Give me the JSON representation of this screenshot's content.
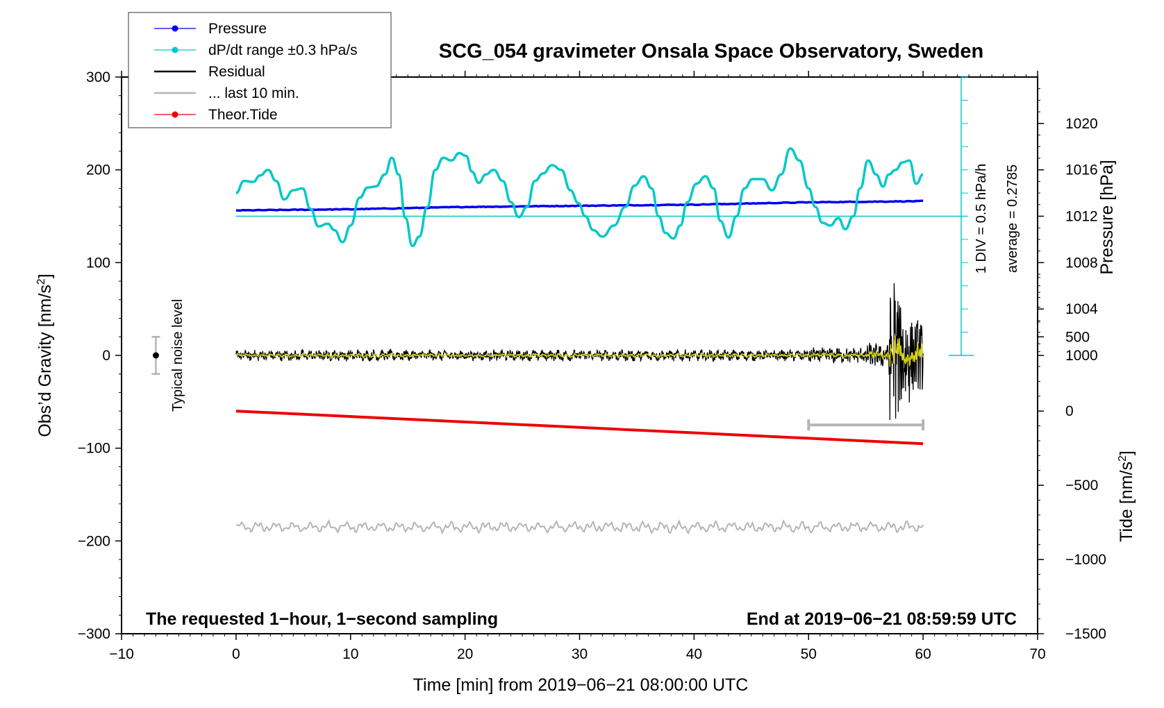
{
  "chart_data": {
    "type": "line",
    "title": "SCG_054 gravimeter Onsala Space Observatory, Sweden",
    "xlabel": "Time [min] from 2019−06−21 08:00:00 UTC",
    "ylabel_left": "Obs’d Gravity [nm/s",
    "ylabel_left_sup": "2",
    "ylabel_left_end": "]",
    "ylabel_right_top": "Pressure [hPa]",
    "ylabel_right_bottom_pre": "Tide [nm/s",
    "ylabel_right_bottom_sup": "2",
    "ylabel_right_bottom_end": "]",
    "xlim": [
      -10,
      70
    ],
    "ylim_left": [
      -300,
      300
    ],
    "pressure_axis_range": [
      1000,
      1024
    ],
    "tide_axis_range": [
      -1500,
      1000
    ],
    "x_ticks": [
      "−10",
      "0",
      "10",
      "20",
      "30",
      "40",
      "50",
      "60",
      "70"
    ],
    "y_left_ticks": [
      "300",
      "200",
      "100",
      "0",
      "−100",
      "−200",
      "−300"
    ],
    "y_pressure_ticks": [
      "1020",
      "1016",
      "1012",
      "1008",
      "1004",
      "1000"
    ],
    "y_tide_ticks": [
      "500",
      "0",
      "−500",
      "−1000",
      "−1500"
    ],
    "legend": [
      {
        "name": "Pressure",
        "color": "#0000ee",
        "marker": true
      },
      {
        "name": "dP/dt range ±0.3 hPa/s",
        "color": "#00c8c8",
        "marker": true
      },
      {
        "name": "Residual",
        "color": "#000000",
        "marker": false
      },
      {
        "name": "... last 10 min.",
        "color": "#b4b4b4",
        "marker": false
      },
      {
        "name": "Theor.Tide",
        "color": "#ee0000",
        "marker": true
      }
    ],
    "annotation_left_bottom": "The requested 1−hour, 1−second sampling",
    "annotation_right_bottom": "End at 2019−06−21 08:59:59 UTC",
    "noise_label": "Typical noise level",
    "noise_bar": {
      "x": -7,
      "center": 0,
      "half_range": 20
    },
    "scale_label_1": "1 DIV = 0.5 hPa/h",
    "scale_label_2": "average = 0.2785",
    "last10_bar": {
      "x_start": 50,
      "x_end": 60,
      "y": -75
    },
    "series": [
      {
        "name": "Pressure",
        "color": "#0000ee",
        "axis": "pressure",
        "x": [
          0,
          10,
          20,
          30,
          40,
          50,
          60
        ],
        "values": [
          1012.5,
          1012.6,
          1012.8,
          1012.9,
          1013.0,
          1013.2,
          1013.3
        ]
      },
      {
        "name": "dP/dt range ±0.3 hPa/s",
        "color": "#00c8c8",
        "axis": "left",
        "x": [
          0,
          0.7,
          1.5,
          2.1,
          2.8,
          3.5,
          4.2,
          5.0,
          5.8,
          6.5,
          7.2,
          8.0,
          8.6,
          9.3,
          10.0,
          10.8,
          11.5,
          12.2,
          13.0,
          13.6,
          14.2,
          14.8,
          15.4,
          16.0,
          16.7,
          17.4,
          18.1,
          18.8,
          19.5,
          20.1,
          20.6,
          21.2,
          21.8,
          22.5,
          23.3,
          24.0,
          24.7,
          25.4,
          26.1,
          26.8,
          27.6,
          28.4,
          29.2,
          29.9,
          30.5,
          31.2,
          32.0,
          33.0,
          34.0,
          34.8,
          35.6,
          36.3,
          36.9,
          37.5,
          38.2,
          38.8,
          39.4,
          40.2,
          41.0,
          41.7,
          42.3,
          43.0,
          43.7,
          44.4,
          45.1,
          46.0,
          46.8,
          47.6,
          48.4,
          49.2,
          50.0,
          50.6,
          51.2,
          51.9,
          52.6,
          53.2,
          53.9,
          54.5,
          55.2,
          55.9,
          56.5,
          57.0,
          57.6,
          58.2,
          58.8,
          59.4,
          60.0
        ],
        "values": [
          175,
          188,
          187,
          194,
          200,
          188,
          168,
          178,
          180,
          158,
          139,
          142,
          135,
          122,
          140,
          170,
          181,
          182,
          195,
          213,
          195,
          148,
          118,
          128,
          160,
          200,
          213,
          210,
          218,
          215,
          198,
          186,
          195,
          200,
          188,
          165,
          149,
          160,
          188,
          196,
          205,
          200,
          178,
          164,
          150,
          135,
          128,
          140,
          160,
          183,
          193,
          180,
          150,
          132,
          126,
          140,
          165,
          185,
          193,
          180,
          145,
          127,
          150,
          180,
          190,
          190,
          178,
          195,
          223,
          210,
          180,
          160,
          143,
          140,
          148,
          136,
          150,
          180,
          210,
          195,
          182,
          195,
          200,
          208,
          210,
          185,
          195
        ]
      },
      {
        "name": "Residual",
        "color": "#000000",
        "axis": "left",
        "note": "noise amplitude about ±5 nm/s² until minute 51, seismic burst up to about ±100 nm/s² around minute 57–59"
      },
      {
        "name": "... last 10 min.",
        "color": "#b4b4b4",
        "axis": "left",
        "x": [
          0,
          60
        ],
        "values": [
          -185,
          -185
        ]
      },
      {
        "name": "Theor.Tide",
        "color": "#ee0000",
        "axis": "tide",
        "x": [
          0,
          60
        ],
        "values": [
          0,
          -220
        ]
      }
    ],
    "reference_lines": [
      {
        "color": "#00c8c8",
        "axis": "pressure",
        "value": 1012
      }
    ]
  }
}
